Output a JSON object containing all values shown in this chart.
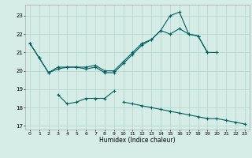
{
  "title": "",
  "xlabel": "Humidex (Indice chaleur)",
  "ylabel": "",
  "xlim": [
    -0.5,
    23.5
  ],
  "ylim": [
    16.8,
    23.6
  ],
  "yticks": [
    17,
    18,
    19,
    20,
    21,
    22,
    23
  ],
  "xticks": [
    0,
    1,
    2,
    3,
    4,
    5,
    6,
    7,
    8,
    9,
    10,
    11,
    12,
    13,
    14,
    15,
    16,
    17,
    18,
    19,
    20,
    21,
    22,
    23
  ],
  "bg_color": "#d6ece6",
  "grid_color": "#b0d4cc",
  "line_color": "#006060",
  "line1_x": [
    0,
    1,
    2,
    3,
    4,
    5,
    6,
    7,
    8,
    9,
    10,
    11,
    12,
    13,
    14,
    15,
    16,
    17,
    18,
    19,
    20
  ],
  "line1_y": [
    21.5,
    20.7,
    19.9,
    20.1,
    20.2,
    20.2,
    20.1,
    20.2,
    19.9,
    19.9,
    20.4,
    20.9,
    21.4,
    21.7,
    22.2,
    22.0,
    22.3,
    22.0,
    21.9,
    21.0,
    21.0
  ],
  "line2_x": [
    0,
    1,
    2,
    3,
    4,
    5,
    6,
    7,
    8,
    9,
    10,
    11,
    12,
    13,
    14,
    15,
    16,
    17,
    18,
    19
  ],
  "line2_y": [
    21.5,
    20.7,
    19.9,
    20.2,
    20.2,
    20.2,
    20.2,
    20.3,
    20.0,
    20.0,
    20.5,
    21.0,
    21.5,
    21.7,
    22.2,
    23.0,
    23.2,
    22.0,
    21.9,
    21.0
  ],
  "line3_x": [
    3,
    4,
    5,
    6,
    7,
    8,
    9
  ],
  "line3_y": [
    18.7,
    18.2,
    18.3,
    18.5,
    18.5,
    18.5,
    18.9
  ],
  "line4_x": [
    10,
    11,
    12,
    13,
    14,
    15,
    16,
    17,
    18,
    19,
    20,
    21,
    22,
    23
  ],
  "line4_y": [
    18.3,
    18.2,
    18.1,
    18.0,
    17.9,
    17.8,
    17.7,
    17.6,
    17.5,
    17.4,
    17.4,
    17.3,
    17.2,
    17.1
  ]
}
